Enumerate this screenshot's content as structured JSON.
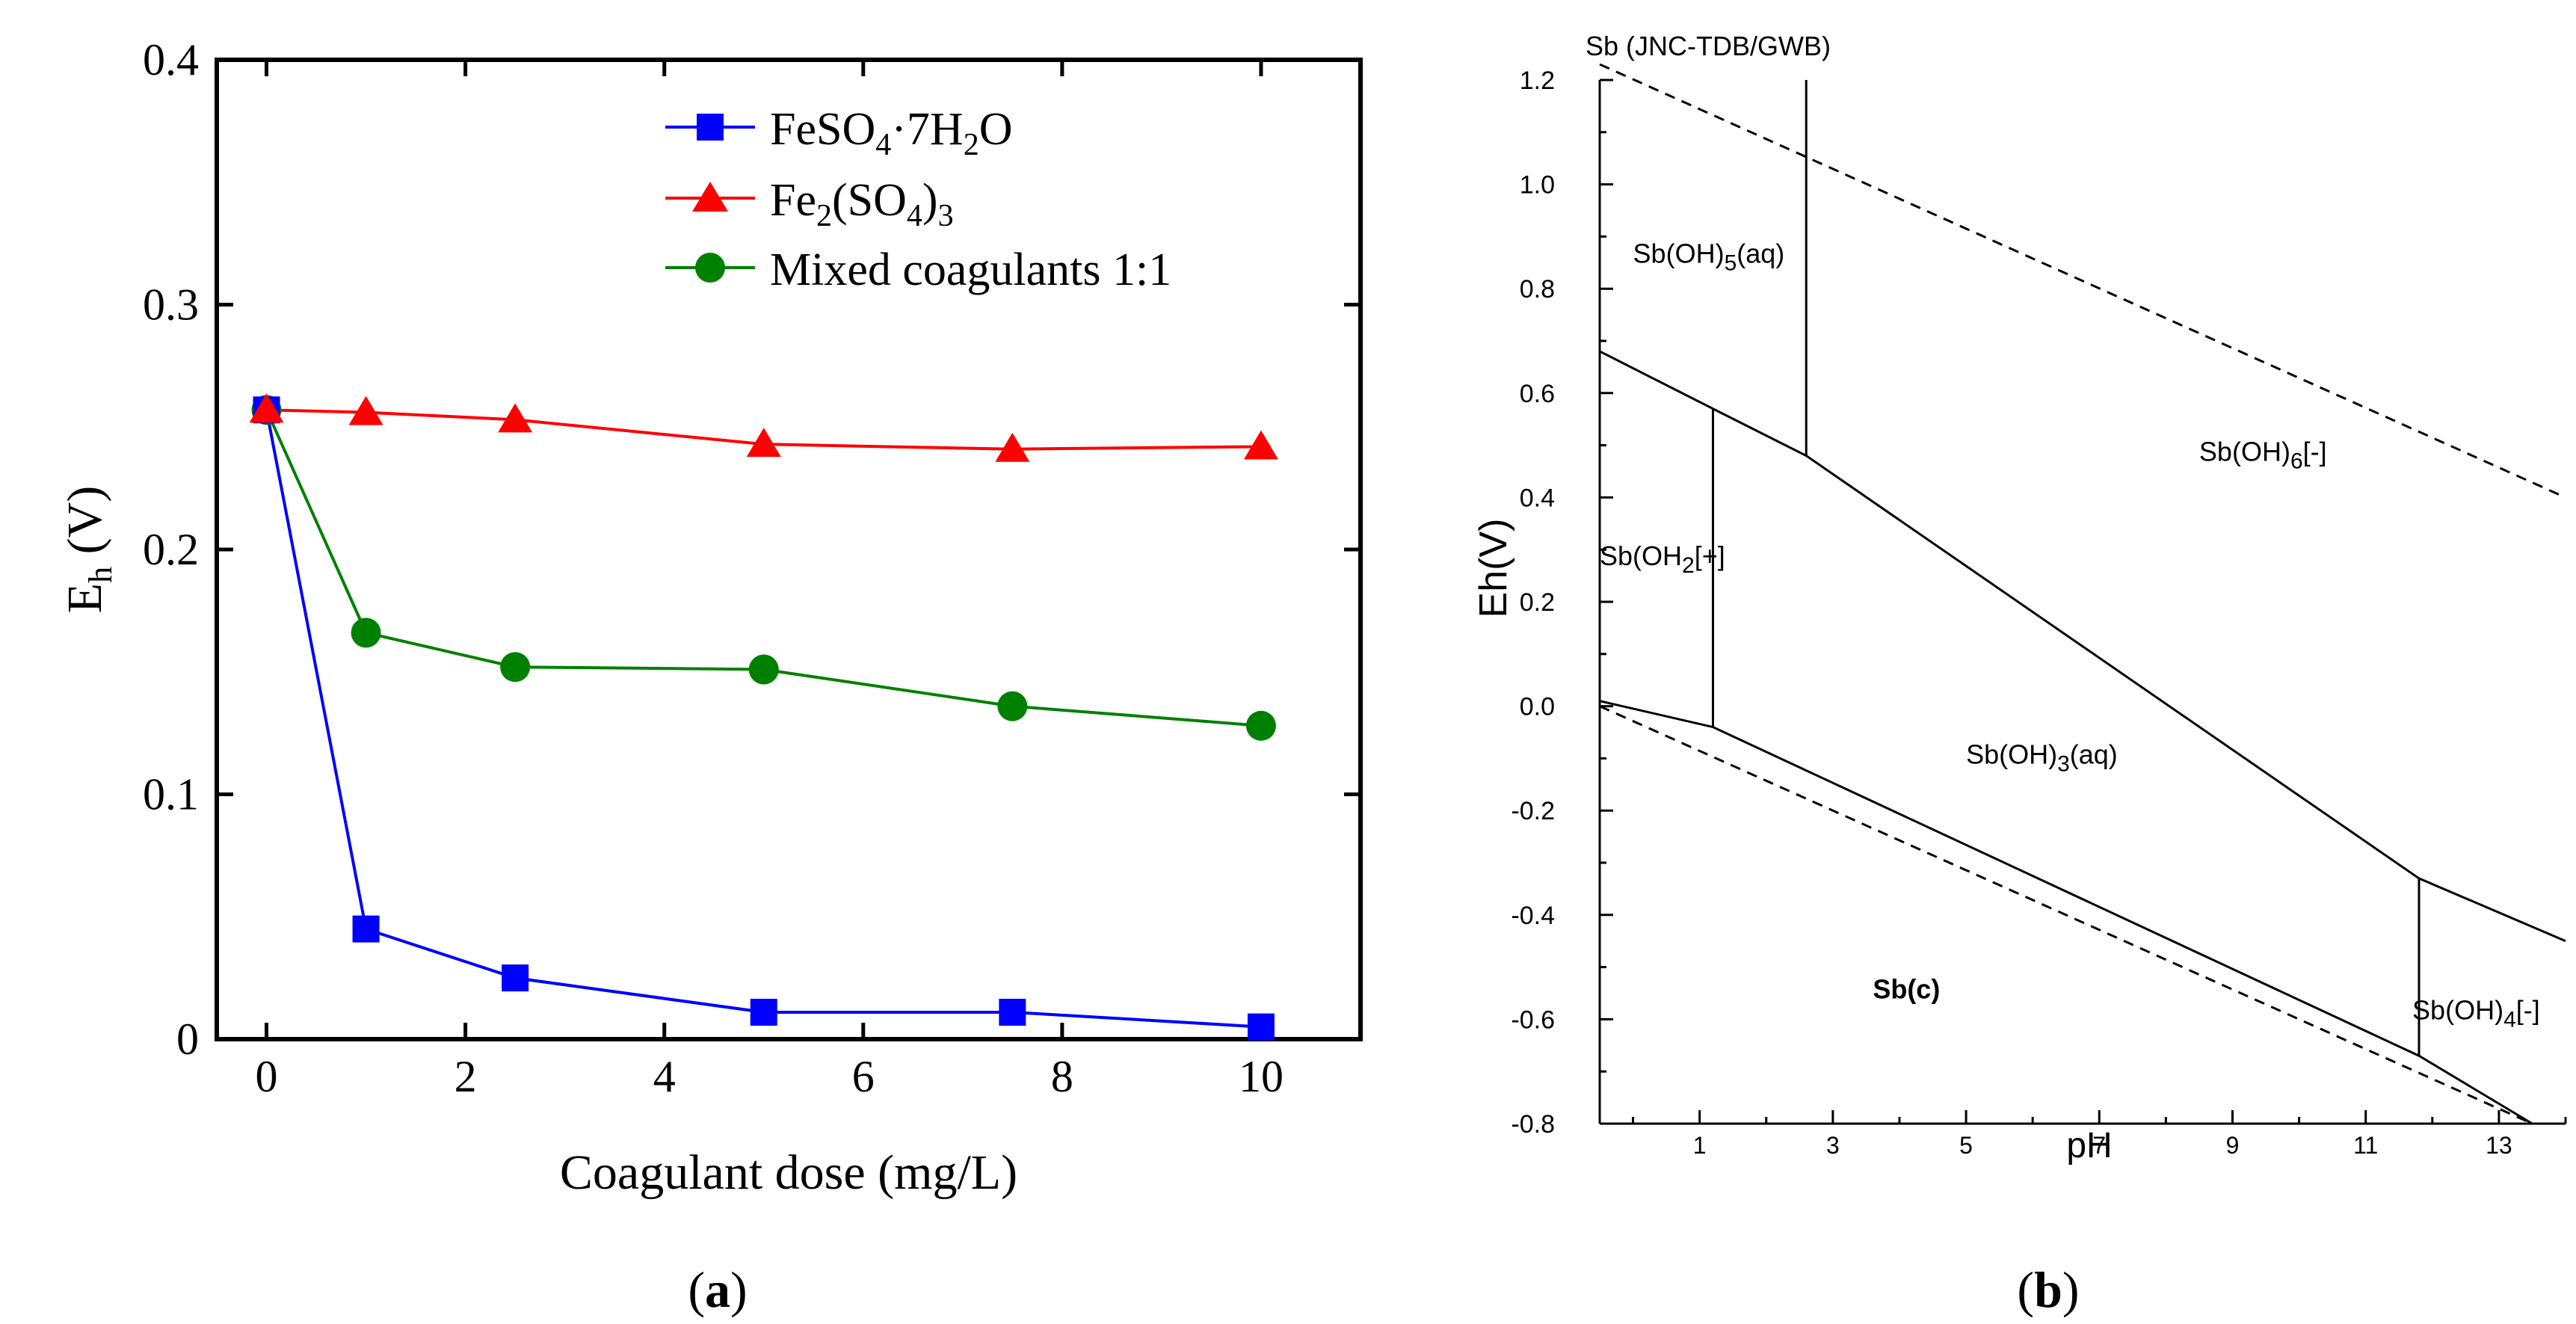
{
  "chart_data": [
    {
      "panel": "(a)",
      "type": "line",
      "title": "",
      "xlabel": "Coagulant dose (mg/L)",
      "ylabel": "E",
      "ylabel_sub": "h",
      "ylabel_unit": " (V)",
      "xlim": [
        -0.5,
        11.0
      ],
      "ylim": [
        0,
        0.4
      ],
      "xticks": [
        0,
        2,
        4,
        6,
        8,
        10
      ],
      "xtick_labels": [
        "0",
        "2",
        "4",
        "6",
        "8",
        "10"
      ],
      "yticks": [
        0,
        0.1,
        0.2,
        0.3,
        0.4
      ],
      "ytick_labels": [
        "0",
        "0.1",
        "0.2",
        "0.3",
        "0.4"
      ],
      "x": [
        0,
        1,
        2.5,
        5,
        7.5,
        10
      ],
      "legend_position": "top-right",
      "series": [
        {
          "name": "FeSO4·7H2O",
          "label_parts": [
            [
              "FeSO",
              ""
            ],
            [
              "4",
              "sub"
            ],
            [
              "·7H",
              ""
            ],
            [
              "2",
              "sub"
            ],
            [
              "O",
              ""
            ]
          ],
          "color": "#0000ff",
          "marker": "square",
          "values": [
            0.257,
            0.045,
            0.025,
            0.011,
            0.011,
            0.005
          ]
        },
        {
          "name": "Fe2(SO4)3",
          "label_parts": [
            [
              "Fe",
              ""
            ],
            [
              "2",
              "sub"
            ],
            [
              "(SO",
              ""
            ],
            [
              "4",
              "sub"
            ],
            [
              ")",
              ""
            ],
            [
              "3",
              "sub"
            ]
          ],
          "color": "#ff0000",
          "marker": "triangle",
          "values": [
            0.257,
            0.256,
            0.253,
            0.243,
            0.241,
            0.242
          ]
        },
        {
          "name": "Mixed coagulants 1:1",
          "label_parts": [
            [
              "Mixed coagulants 1:1",
              ""
            ]
          ],
          "color": "#008000",
          "marker": "circle",
          "values": [
            0.257,
            0.166,
            0.152,
            0.151,
            0.136,
            0.128
          ]
        }
      ]
    },
    {
      "panel": "(b)",
      "type": "line",
      "title": "Sb (JNC-TDB/GWB)",
      "xlabel": "pH",
      "ylabel": "Eh(V)",
      "xlim": [
        -0.5,
        14
      ],
      "ylim": [
        -0.8,
        1.2
      ],
      "xticks": [
        1,
        3,
        5,
        7,
        9,
        11,
        13
      ],
      "xtick_labels": [
        "1",
        "3",
        "5",
        "7",
        "9",
        "11",
        "13"
      ],
      "yticks": [
        -0.8,
        -0.6,
        -0.4,
        -0.2,
        0.0,
        0.2,
        0.4,
        0.6,
        0.8,
        1.0,
        1.2
      ],
      "ytick_labels": [
        "-0.8",
        "-0.6",
        "-0.4",
        "-0.2",
        "0.0",
        "0.2",
        "0.4",
        "0.6",
        "0.8",
        "1.0",
        "1.2"
      ],
      "boundaries": [
        {
          "name": "upper-solid-boundary",
          "style": "solid",
          "points": [
            [
              -0.5,
              0.68
            ],
            [
              1.2,
              0.57
            ],
            [
              2.6,
              0.48
            ],
            [
              11.8,
              -0.33
            ],
            [
              14,
              -0.45
            ]
          ]
        },
        {
          "name": "lower-solid-boundary",
          "style": "solid",
          "points": [
            [
              -0.5,
              0.01
            ],
            [
              1.2,
              -0.04
            ],
            [
              11.8,
              -0.67
            ],
            [
              13.5,
              -0.8
            ]
          ]
        },
        {
          "name": "oh2-left-divider",
          "style": "solid",
          "points": [
            [
              1.2,
              0.57
            ],
            [
              1.2,
              -0.04
            ]
          ]
        },
        {
          "name": "oh5-divider",
          "style": "solid",
          "points": [
            [
              2.6,
              1.2
            ],
            [
              2.6,
              0.48
            ]
          ]
        },
        {
          "name": "oh4-divider",
          "style": "solid",
          "points": [
            [
              11.8,
              -0.33
            ],
            [
              11.8,
              -0.67
            ]
          ]
        },
        {
          "name": "water-upper-dashed",
          "style": "dashed",
          "points": [
            [
              -0.5,
              1.23
            ],
            [
              14,
              0.4
            ]
          ]
        },
        {
          "name": "water-lower-dashed",
          "style": "dashed",
          "points": [
            [
              -0.5,
              0.0
            ],
            [
              13.5,
              -0.8
            ]
          ]
        }
      ],
      "regions": [
        {
          "name": "region-sboh5",
          "parts": [
            [
              "Sb(OH)",
              ""
            ],
            [
              "5",
              "sub"
            ],
            [
              "(aq)",
              ""
            ]
          ],
          "x": 0.0,
          "y": 0.85,
          "bold": false
        },
        {
          "name": "region-sboh6",
          "parts": [
            [
              "Sb(OH)",
              ""
            ],
            [
              "6",
              "sub"
            ],
            [
              "[-]",
              ""
            ]
          ],
          "x": 8.5,
          "y": 0.47,
          "bold": false
        },
        {
          "name": "region-sboh2",
          "parts": [
            [
              "Sb(OH",
              ""
            ],
            [
              "2",
              "sub"
            ],
            [
              "[+]",
              ""
            ]
          ],
          "x": -0.5,
          "y": 0.27,
          "bold": false
        },
        {
          "name": "region-sboh3",
          "parts": [
            [
              "Sb(OH)",
              ""
            ],
            [
              "3",
              "sub"
            ],
            [
              "(aq)",
              ""
            ]
          ],
          "x": 5.0,
          "y": -0.11,
          "bold": false
        },
        {
          "name": "region-sbc",
          "parts": [
            [
              "Sb(c)",
              ""
            ]
          ],
          "x": 3.6,
          "y": -0.56,
          "bold": true
        },
        {
          "name": "region-sboh4",
          "parts": [
            [
              "Sb(OH)",
              ""
            ],
            [
              "4",
              "sub"
            ],
            [
              "[-]",
              ""
            ]
          ],
          "x": 11.7,
          "y": -0.6,
          "bold": false
        }
      ]
    }
  ],
  "captions": {
    "a": "a",
    "b": "b"
  }
}
